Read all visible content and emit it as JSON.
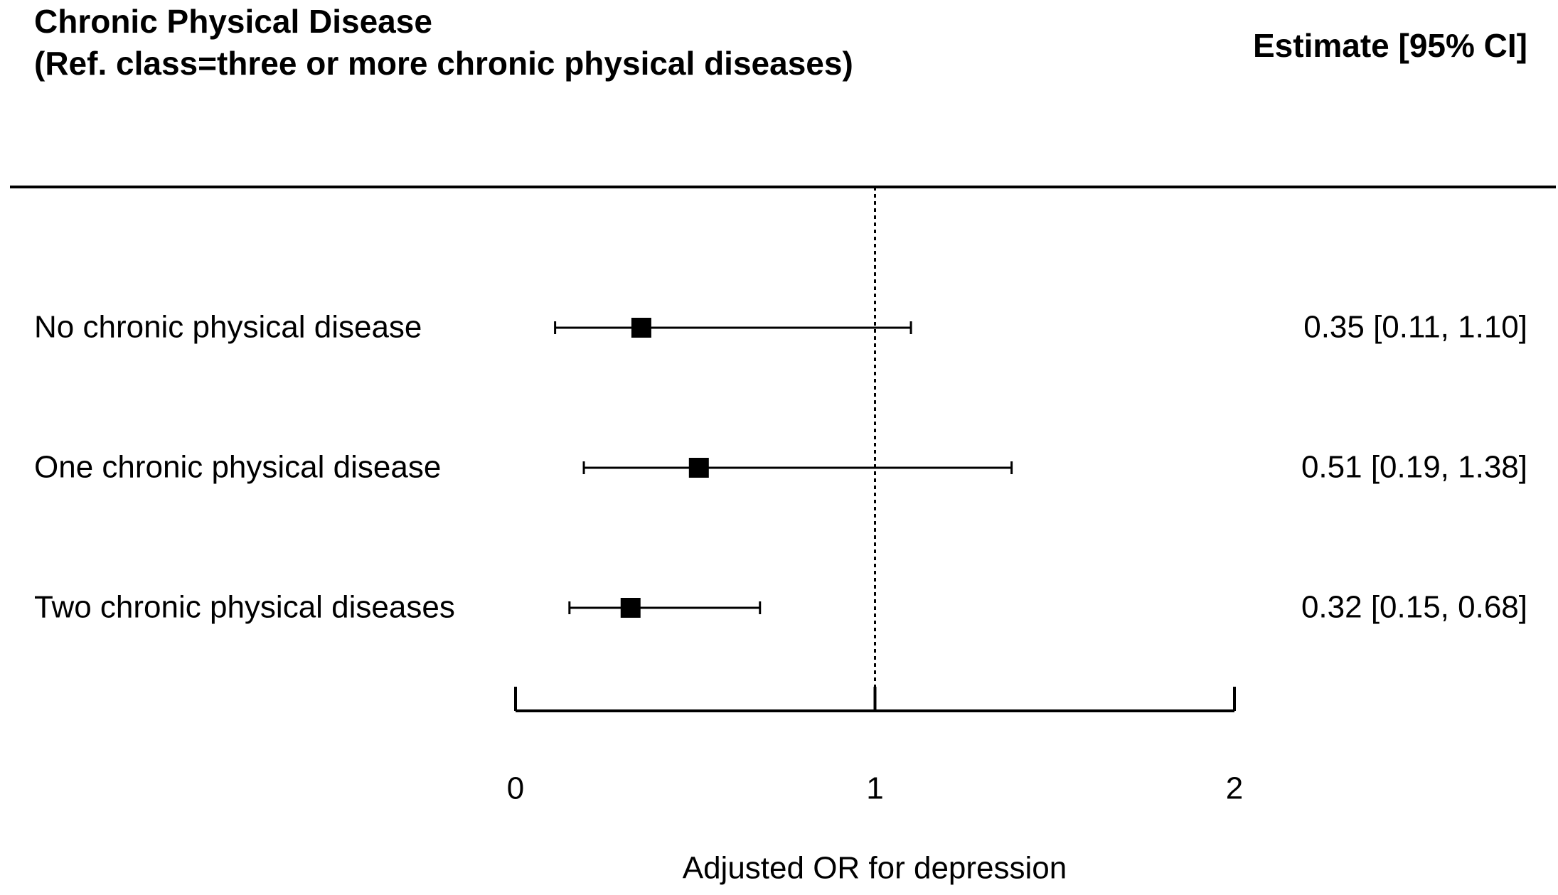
{
  "chart_data": {
    "type": "forest",
    "title": [
      "Chronic Physical Disease",
      "(Ref. class=three or more chronic physical diseases)"
    ],
    "estimate_header": "Estimate [95% CI]",
    "categories": [
      "No chronic physical disease",
      "One chronic physical disease",
      "Two chronic physical diseases"
    ],
    "values": [
      0.35,
      0.51,
      0.32
    ],
    "lower": [
      0.11,
      0.19,
      0.15
    ],
    "upper": [
      1.1,
      1.38,
      0.68
    ],
    "value_labels": [
      "0.35 [0.11, 1.10]",
      "0.51 [0.19, 1.38]",
      "0.32 [0.15, 0.68]"
    ],
    "xlabel": "Adjusted OR for depression",
    "xlim": [
      0,
      2
    ],
    "xticks": [
      0,
      1,
      2
    ],
    "reference_line": 1,
    "color": "#000000"
  }
}
